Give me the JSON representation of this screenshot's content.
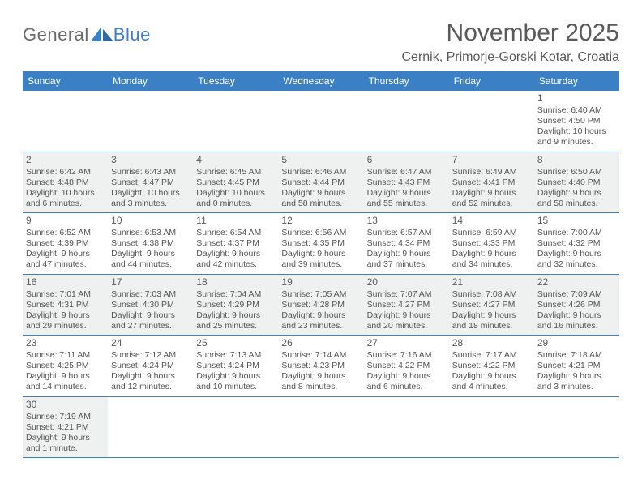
{
  "logo": {
    "general": "General",
    "blue": "Blue"
  },
  "title": "November 2025",
  "location": "Cernik, Primorje-Gorski Kotar, Croatia",
  "colors": {
    "header_bg": "#3b7fc4",
    "header_text": "#ffffff",
    "text": "#555555",
    "shaded_bg": "#eff0f0",
    "rule": "#3b7fc4"
  },
  "day_names": [
    "Sunday",
    "Monday",
    "Tuesday",
    "Wednesday",
    "Thursday",
    "Friday",
    "Saturday"
  ],
  "weeks": [
    [
      null,
      null,
      null,
      null,
      null,
      null,
      {
        "n": "1",
        "sr": "6:40 AM",
        "ss": "4:50 PM",
        "dl": "10 hours and 9 minutes."
      }
    ],
    [
      {
        "n": "2",
        "sr": "6:42 AM",
        "ss": "4:48 PM",
        "dl": "10 hours and 6 minutes.",
        "sh": true
      },
      {
        "n": "3",
        "sr": "6:43 AM",
        "ss": "4:47 PM",
        "dl": "10 hours and 3 minutes.",
        "sh": true
      },
      {
        "n": "4",
        "sr": "6:45 AM",
        "ss": "4:45 PM",
        "dl": "10 hours and 0 minutes.",
        "sh": true
      },
      {
        "n": "5",
        "sr": "6:46 AM",
        "ss": "4:44 PM",
        "dl": "9 hours and 58 minutes.",
        "sh": true
      },
      {
        "n": "6",
        "sr": "6:47 AM",
        "ss": "4:43 PM",
        "dl": "9 hours and 55 minutes.",
        "sh": true
      },
      {
        "n": "7",
        "sr": "6:49 AM",
        "ss": "4:41 PM",
        "dl": "9 hours and 52 minutes.",
        "sh": true
      },
      {
        "n": "8",
        "sr": "6:50 AM",
        "ss": "4:40 PM",
        "dl": "9 hours and 50 minutes.",
        "sh": true
      }
    ],
    [
      {
        "n": "9",
        "sr": "6:52 AM",
        "ss": "4:39 PM",
        "dl": "9 hours and 47 minutes."
      },
      {
        "n": "10",
        "sr": "6:53 AM",
        "ss": "4:38 PM",
        "dl": "9 hours and 44 minutes."
      },
      {
        "n": "11",
        "sr": "6:54 AM",
        "ss": "4:37 PM",
        "dl": "9 hours and 42 minutes."
      },
      {
        "n": "12",
        "sr": "6:56 AM",
        "ss": "4:35 PM",
        "dl": "9 hours and 39 minutes."
      },
      {
        "n": "13",
        "sr": "6:57 AM",
        "ss": "4:34 PM",
        "dl": "9 hours and 37 minutes."
      },
      {
        "n": "14",
        "sr": "6:59 AM",
        "ss": "4:33 PM",
        "dl": "9 hours and 34 minutes."
      },
      {
        "n": "15",
        "sr": "7:00 AM",
        "ss": "4:32 PM",
        "dl": "9 hours and 32 minutes."
      }
    ],
    [
      {
        "n": "16",
        "sr": "7:01 AM",
        "ss": "4:31 PM",
        "dl": "9 hours and 29 minutes.",
        "sh": true
      },
      {
        "n": "17",
        "sr": "7:03 AM",
        "ss": "4:30 PM",
        "dl": "9 hours and 27 minutes.",
        "sh": true
      },
      {
        "n": "18",
        "sr": "7:04 AM",
        "ss": "4:29 PM",
        "dl": "9 hours and 25 minutes.",
        "sh": true
      },
      {
        "n": "19",
        "sr": "7:05 AM",
        "ss": "4:28 PM",
        "dl": "9 hours and 23 minutes.",
        "sh": true
      },
      {
        "n": "20",
        "sr": "7:07 AM",
        "ss": "4:27 PM",
        "dl": "9 hours and 20 minutes.",
        "sh": true
      },
      {
        "n": "21",
        "sr": "7:08 AM",
        "ss": "4:27 PM",
        "dl": "9 hours and 18 minutes.",
        "sh": true
      },
      {
        "n": "22",
        "sr": "7:09 AM",
        "ss": "4:26 PM",
        "dl": "9 hours and 16 minutes.",
        "sh": true
      }
    ],
    [
      {
        "n": "23",
        "sr": "7:11 AM",
        "ss": "4:25 PM",
        "dl": "9 hours and 14 minutes."
      },
      {
        "n": "24",
        "sr": "7:12 AM",
        "ss": "4:24 PM",
        "dl": "9 hours and 12 minutes."
      },
      {
        "n": "25",
        "sr": "7:13 AM",
        "ss": "4:24 PM",
        "dl": "9 hours and 10 minutes."
      },
      {
        "n": "26",
        "sr": "7:14 AM",
        "ss": "4:23 PM",
        "dl": "9 hours and 8 minutes."
      },
      {
        "n": "27",
        "sr": "7:16 AM",
        "ss": "4:22 PM",
        "dl": "9 hours and 6 minutes."
      },
      {
        "n": "28",
        "sr": "7:17 AM",
        "ss": "4:22 PM",
        "dl": "9 hours and 4 minutes."
      },
      {
        "n": "29",
        "sr": "7:18 AM",
        "ss": "4:21 PM",
        "dl": "9 hours and 3 minutes."
      }
    ],
    [
      {
        "n": "30",
        "sr": "7:19 AM",
        "ss": "4:21 PM",
        "dl": "9 hours and 1 minute.",
        "sh": true
      },
      null,
      null,
      null,
      null,
      null,
      null
    ]
  ],
  "labels": {
    "sunrise": "Sunrise:",
    "sunset": "Sunset:",
    "daylight": "Daylight:"
  }
}
